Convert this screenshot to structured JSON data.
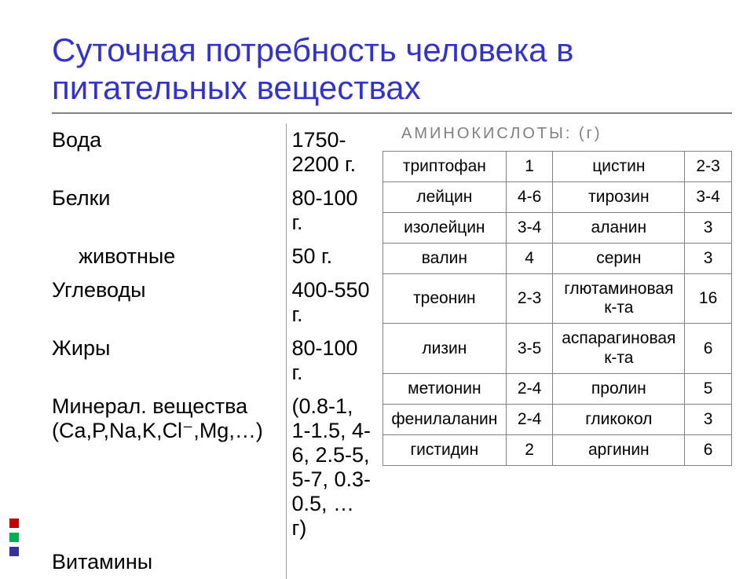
{
  "title": "Суточная потребность человека в питательных веществах",
  "nutrients": [
    {
      "name": "Вода",
      "value": "1750-2200 г.",
      "indent": false,
      "tall": true
    },
    {
      "name": "Белки",
      "value": "80-100 г.",
      "indent": false,
      "tall": false
    },
    {
      "name": "животные",
      "value": "50 г.",
      "indent": true,
      "tall": false
    },
    {
      "name": "Углеводы",
      "value": "400-550 г.",
      "indent": false,
      "tall": false
    },
    {
      "name": "Жиры",
      "value": "80-100 г.",
      "indent": false,
      "tall": false
    },
    {
      "name": "Минерал. вещества (Ca,P,Na,K,Cl⁻,Mg,…)",
      "value": "(0.8-1,\n1-1.5, 4-6, 2.5-5, 5-7, 0.3-0.5, … г)",
      "indent": false,
      "tall": false
    },
    {
      "name": "Витамины",
      "value": "",
      "indent": false,
      "tall": false
    }
  ],
  "amino_title": "АМИНОКИСЛОТЫ:  (г)",
  "amino_rows": [
    {
      "n1": "триптофан",
      "v1": "1",
      "n2": "цистин",
      "v2": "2-3"
    },
    {
      "n1": "лейцин",
      "v1": "4-6",
      "n2": "тирозин",
      "v2": "3-4"
    },
    {
      "n1": "изолейцин",
      "v1": "3-4",
      "n2": "аланин",
      "v2": "3"
    },
    {
      "n1": "валин",
      "v1": "4",
      "n2": "серин",
      "v2": "3"
    },
    {
      "n1": "треонин",
      "v1": "2-3",
      "n2": "глютаминовая к-та",
      "v2": "16"
    },
    {
      "n1": "лизин",
      "v1": "3-5",
      "n2": "аспарагиновая к-та",
      "v2": "6"
    },
    {
      "n1": "метионин",
      "v1": "2-4",
      "n2": "пролин",
      "v2": "5"
    },
    {
      "n1": "фенилаланин",
      "v1": "2-4",
      "n2": "гликокол",
      "v2": "3"
    },
    {
      "n1": "гистидин",
      "v1": "2",
      "n2": "аргинин",
      "v2": "6"
    }
  ],
  "deco_colors": [
    "#c00000",
    "#00b050",
    "#333399"
  ]
}
